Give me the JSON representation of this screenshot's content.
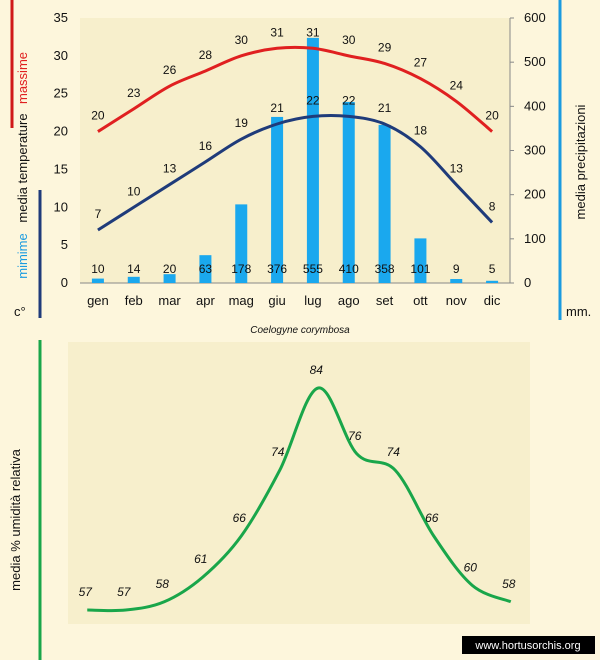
{
  "climate_chart": {
    "species": "Coelogyne corymbosa",
    "left_axis": {
      "title_top": "massime",
      "title_mid": "media  temperature",
      "title_low": "mimime",
      "unit": "c°",
      "color_top": "#e02020",
      "color_low": "#1a9be0"
    },
    "right_axis": {
      "title": "media  precipitazioni",
      "unit": "mm."
    }
  },
  "humidity_chart": {
    "axis_title": "media % umidità relativa"
  },
  "watermark": "www.hortusorchis.org",
  "colors": {
    "max_line": "#e02020",
    "min_line": "#1f3b7a",
    "bars": "#1aa8ee",
    "humidity_line": "#19a64a",
    "bar_bracket": "#1a9be0"
  },
  "chart_data": [
    {
      "type": "bar",
      "categories": [
        "gen",
        "feb",
        "mar",
        "apr",
        "mag",
        "giu",
        "lug",
        "ago",
        "set",
        "ott",
        "nov",
        "dic"
      ],
      "series": [
        {
          "values": [
            10,
            14,
            20,
            63,
            178,
            376,
            555,
            410,
            358,
            101,
            9,
            5
          ]
        }
      ],
      "ylim": [
        0,
        600
      ],
      "yticks": [
        0,
        100,
        200,
        300,
        400,
        500,
        600
      ],
      "ylabel": "media  precipitazioni",
      "axis": "right"
    },
    {
      "type": "line",
      "categories": [
        "gen",
        "feb",
        "mar",
        "apr",
        "mag",
        "giu",
        "lug",
        "ago",
        "set",
        "ott",
        "nov",
        "dic"
      ],
      "series": [
        {
          "name": "massime",
          "values": [
            20,
            23,
            26,
            28,
            30,
            31,
            31,
            30,
            29,
            27,
            24,
            20
          ]
        },
        {
          "name": "mimime",
          "values": [
            7,
            10,
            13,
            16,
            19,
            21,
            22,
            22,
            21,
            18,
            13,
            8
          ]
        }
      ],
      "ylim": [
        0,
        35
      ],
      "yticks": [
        0,
        5,
        10,
        15,
        20,
        25,
        30,
        35
      ],
      "axis": "left"
    },
    {
      "type": "line",
      "categories": [
        "gen",
        "feb",
        "mar",
        "apr",
        "mag",
        "giu",
        "lug",
        "ago",
        "set",
        "ott",
        "nov",
        "dic"
      ],
      "series": [
        {
          "values": [
            57,
            57,
            58,
            61,
            66,
            74,
            84,
            76,
            74,
            66,
            60,
            58
          ]
        }
      ],
      "ylabel": "media % umidità relativa"
    }
  ]
}
